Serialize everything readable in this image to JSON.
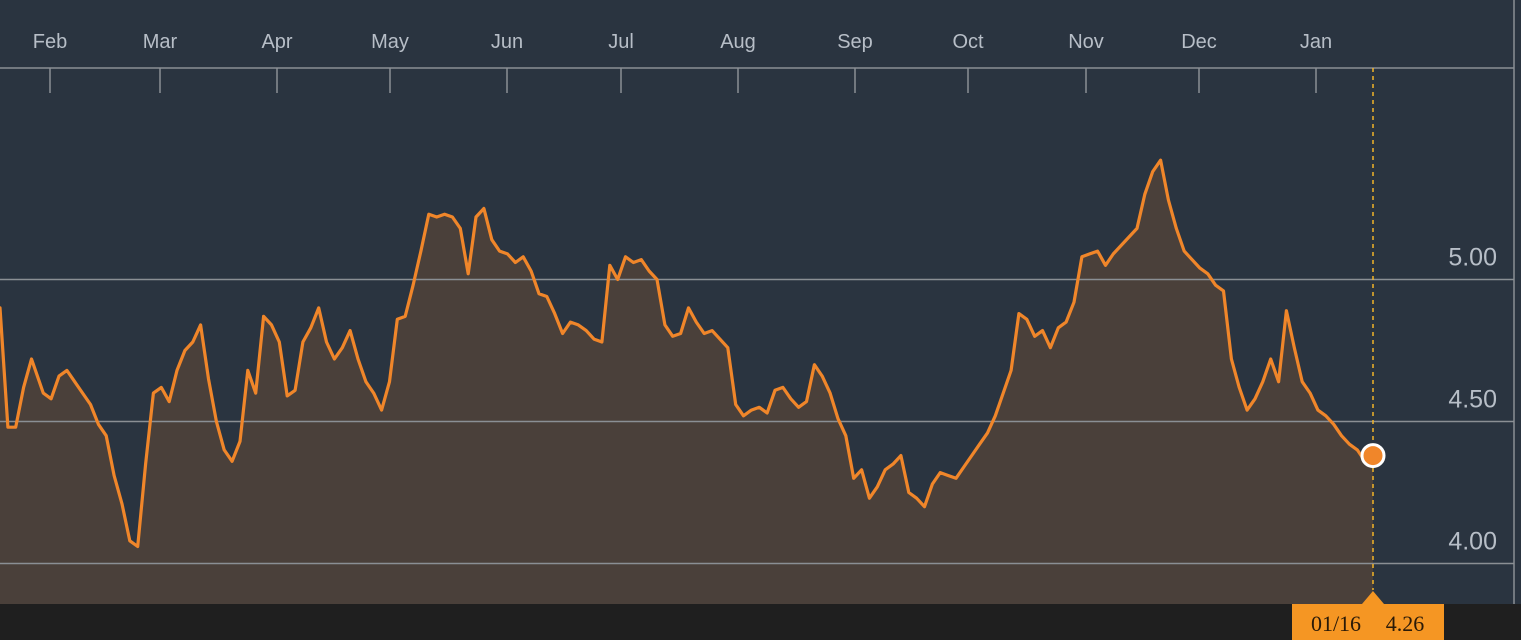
{
  "chart_data": {
    "type": "area",
    "title": "",
    "xlabel": "",
    "ylabel": "",
    "x_ticks": [
      "Feb",
      "Mar",
      "Apr",
      "May",
      "Jun",
      "Jul",
      "Aug",
      "Sep",
      "Oct",
      "Nov",
      "Dec",
      "Jan"
    ],
    "y_ticks": [
      "4.00",
      "4.50",
      "5.00"
    ],
    "ylim": [
      3.86,
      5.88
    ],
    "grid": true,
    "legend": "none",
    "cursor": {
      "date": "01/16",
      "value": "4.26"
    },
    "series": [
      {
        "color": "#f0862a",
        "x": [
          0,
          2,
          4,
          6,
          8,
          11,
          13,
          15,
          17,
          19,
          21,
          23,
          25,
          27,
          29,
          31,
          33,
          35,
          37,
          39,
          41,
          43,
          45,
          47,
          49,
          51,
          53,
          55,
          57,
          59,
          61,
          63,
          65,
          67,
          69,
          71,
          73,
          75,
          77,
          79,
          81,
          83,
          85,
          87,
          89,
          91,
          93,
          95,
          97,
          99,
          101,
          103,
          105,
          107,
          109,
          111,
          113,
          115,
          117,
          119,
          121,
          123,
          125,
          127,
          129,
          131,
          133,
          135,
          137,
          139,
          141,
          143,
          145,
          147,
          149,
          151,
          153,
          155,
          157,
          159,
          161,
          163,
          165,
          167,
          169,
          171,
          173,
          175,
          177,
          179,
          181,
          183,
          185,
          187,
          189,
          191,
          193,
          195,
          197,
          199,
          201,
          203,
          205,
          207,
          209,
          211,
          213,
          215,
          217,
          219,
          221,
          223,
          225,
          227,
          229,
          231,
          233,
          235,
          237,
          239,
          241,
          243,
          245,
          247,
          249,
          251,
          253,
          255,
          257,
          259,
          261,
          263,
          265,
          267,
          269,
          271,
          273,
          275,
          277,
          279,
          281,
          283,
          285,
          287,
          289,
          291,
          293,
          295,
          297,
          299,
          301,
          303,
          305,
          307,
          309,
          311,
          313,
          315,
          317,
          319,
          321,
          323,
          325,
          327,
          329,
          331,
          333,
          335,
          337,
          339,
          341,
          343,
          345,
          347,
          349
        ],
        "values": [
          4.9,
          4.48,
          4.48,
          4.62,
          4.72,
          4.6,
          4.58,
          4.66,
          4.68,
          4.64,
          4.6,
          4.56,
          4.49,
          4.45,
          4.31,
          4.21,
          4.08,
          4.06,
          4.35,
          4.6,
          4.62,
          4.57,
          4.68,
          4.75,
          4.78,
          4.84,
          4.65,
          4.5,
          4.4,
          4.36,
          4.43,
          4.68,
          4.6,
          4.87,
          4.84,
          4.78,
          4.59,
          4.61,
          4.78,
          4.83,
          4.9,
          4.78,
          4.72,
          4.76,
          4.82,
          4.72,
          4.64,
          4.6,
          4.54,
          4.64,
          4.86,
          4.87,
          4.98,
          5.1,
          5.23,
          5.22,
          5.23,
          5.22,
          5.18,
          5.02,
          5.22,
          5.25,
          5.14,
          5.1,
          5.09,
          5.06,
          5.08,
          5.03,
          4.95,
          4.94,
          4.88,
          4.81,
          4.85,
          4.84,
          4.82,
          4.79,
          4.78,
          5.05,
          5.0,
          5.08,
          5.06,
          5.07,
          5.03,
          5.0,
          4.84,
          4.8,
          4.81,
          4.9,
          4.85,
          4.81,
          4.82,
          4.79,
          4.76,
          4.56,
          4.52,
          4.54,
          4.55,
          4.53,
          4.61,
          4.62,
          4.58,
          4.55,
          4.57,
          4.7,
          4.66,
          4.6,
          4.51,
          4.45,
          4.3,
          4.33,
          4.23,
          4.27,
          4.33,
          4.35,
          4.38,
          4.25,
          4.23,
          4.2,
          4.28,
          4.32,
          4.31,
          4.3,
          4.34,
          4.38,
          4.42,
          4.46,
          4.52,
          4.6,
          4.68,
          4.88,
          4.86,
          4.8,
          4.82,
          4.76,
          4.83,
          4.85,
          4.92,
          5.08,
          5.09,
          5.1,
          5.05,
          5.09,
          5.12,
          5.15,
          5.18,
          5.3,
          5.38,
          5.42,
          5.28,
          5.18,
          5.1,
          5.07,
          5.04,
          5.02,
          4.98,
          4.96,
          4.72,
          4.62,
          4.54,
          4.58,
          4.64,
          4.72,
          4.64,
          4.89,
          4.76,
          4.64,
          4.6,
          4.54,
          4.52,
          4.49,
          4.45,
          4.42,
          4.4,
          4.36,
          4.38
        ]
      }
    ]
  }
}
